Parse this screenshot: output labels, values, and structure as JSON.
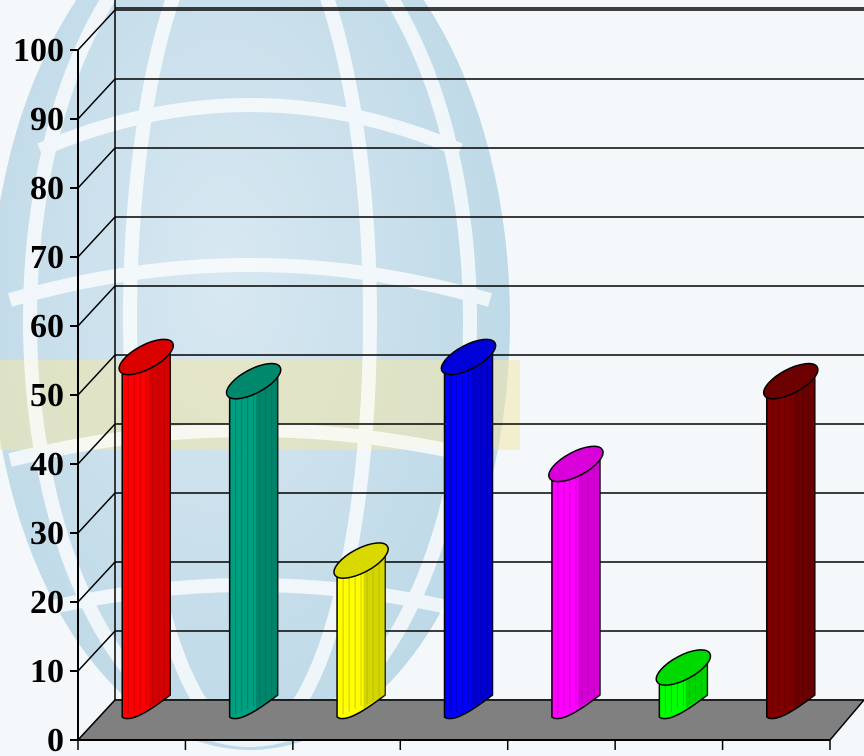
{
  "chart_data": {
    "type": "bar",
    "style": "3d-cylinder",
    "title": "",
    "xlabel": "",
    "ylabel": "",
    "ylim": [
      0,
      100
    ],
    "yticks": [
      "0",
      "10",
      "20",
      "30",
      "40",
      "50",
      "60",
      "70",
      "80",
      "90",
      "100"
    ],
    "categories": [
      "",
      "",
      "",
      "",
      "",
      "",
      ""
    ],
    "values": [
      50,
      46.5,
      20.5,
      50,
      34.5,
      5,
      46.5
    ],
    "colors": [
      "#ff0000",
      "#00a080",
      "#ffff00",
      "#0000ff",
      "#ff00ff",
      "#00ff00",
      "#800000"
    ],
    "grid": true,
    "legend": "none",
    "background": "globe-watermark",
    "floor_color": "#808080"
  }
}
